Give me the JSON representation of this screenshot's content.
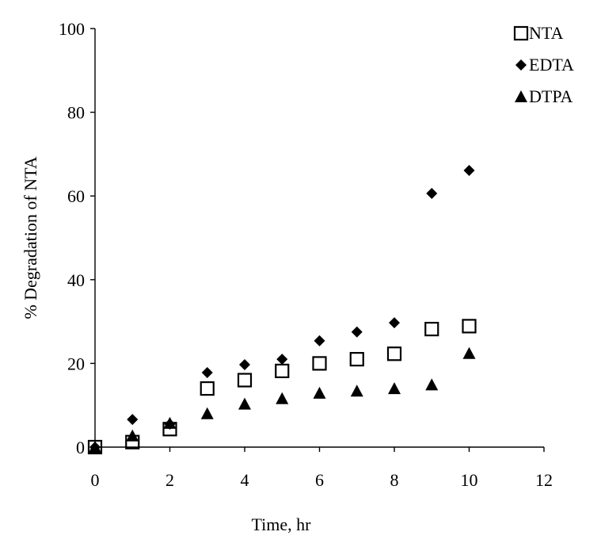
{
  "chart_data": {
    "type": "scatter",
    "title": "",
    "xlabel": "Time, hr",
    "ylabel": "% Degradation of NTA",
    "xlim": [
      0,
      12
    ],
    "ylim": [
      0,
      100
    ],
    "xticks": [
      0,
      2,
      4,
      6,
      8,
      10,
      12
    ],
    "yticks": [
      0,
      20,
      40,
      60,
      80,
      100
    ],
    "grid": false,
    "legend_position": "top-right",
    "series": [
      {
        "name": "NTA",
        "marker": "open-square",
        "color": "#000000",
        "points": [
          [
            0,
            0
          ],
          [
            1,
            1.2
          ],
          [
            2,
            4.3
          ],
          [
            3,
            14
          ],
          [
            4,
            16
          ],
          [
            5,
            18.2
          ],
          [
            6,
            20
          ],
          [
            7,
            21
          ],
          [
            8,
            22.3
          ],
          [
            9,
            28.2
          ],
          [
            10,
            28.9
          ]
        ]
      },
      {
        "name": "EDTA",
        "marker": "filled-diamond",
        "color": "#000000",
        "points": [
          [
            0,
            0
          ],
          [
            1,
            6.6
          ],
          [
            2,
            5.5
          ],
          [
            3,
            17.8
          ],
          [
            4,
            19.7
          ],
          [
            5,
            21
          ],
          [
            6,
            25.4
          ],
          [
            7,
            27.5
          ],
          [
            8,
            29.7
          ],
          [
            9,
            60.6
          ],
          [
            10,
            66.1
          ]
        ]
      },
      {
        "name": "DTPA",
        "marker": "filled-triangle",
        "color": "#000000",
        "points": [
          [
            0,
            0
          ],
          [
            1,
            2.7
          ],
          [
            2,
            5.7
          ],
          [
            3,
            8
          ],
          [
            4,
            10.3
          ],
          [
            5,
            11.6
          ],
          [
            6,
            12.9
          ],
          [
            7,
            13.4
          ],
          [
            8,
            14
          ],
          [
            9,
            14.9
          ],
          [
            10,
            22.4
          ]
        ]
      }
    ]
  }
}
